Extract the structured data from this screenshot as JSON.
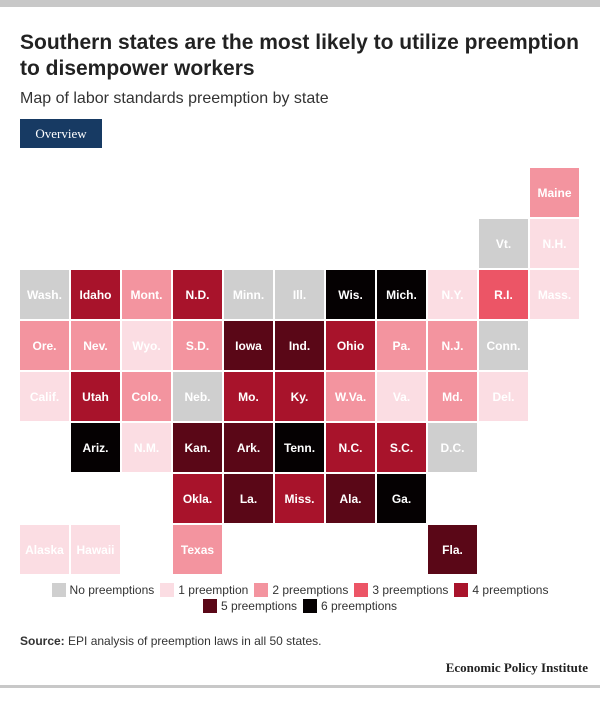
{
  "title": "Southern states are the most likely to utilize preemption to disempower workers",
  "subtitle": "Map of labor standards preemption by state",
  "tab_label": "Overview",
  "legend": [
    {
      "label": "No preemptions",
      "level": 0
    },
    {
      "label": "1 preemption",
      "level": 1
    },
    {
      "label": "2 preemptions",
      "level": 2
    },
    {
      "label": "3 preemptions",
      "level": 3
    },
    {
      "label": "4 preemptions",
      "level": 4
    },
    {
      "label": "5 preemptions",
      "level": 5
    },
    {
      "label": "6 preemptions",
      "level": 6
    }
  ],
  "colors": {
    "0": "#cfcfcf",
    "1": "#fbdde3",
    "2": "#f3949f",
    "3": "#ec5566",
    "4": "#a8132b",
    "5": "#5a0717",
    "6": "#050102"
  },
  "states": [
    {
      "label": "Maine",
      "row": 0,
      "col": 10,
      "preemptions": 2
    },
    {
      "label": "Vt.",
      "row": 1,
      "col": 9,
      "preemptions": 0
    },
    {
      "label": "N.H.",
      "row": 1,
      "col": 10,
      "preemptions": 1
    },
    {
      "label": "Wash.",
      "row": 2,
      "col": 0,
      "preemptions": 0
    },
    {
      "label": "Idaho",
      "row": 2,
      "col": 1,
      "preemptions": 4
    },
    {
      "label": "Mont.",
      "row": 2,
      "col": 2,
      "preemptions": 2
    },
    {
      "label": "N.D.",
      "row": 2,
      "col": 3,
      "preemptions": 4
    },
    {
      "label": "Minn.",
      "row": 2,
      "col": 4,
      "preemptions": 0
    },
    {
      "label": "Ill.",
      "row": 2,
      "col": 5,
      "preemptions": 0
    },
    {
      "label": "Wis.",
      "row": 2,
      "col": 6,
      "preemptions": 6
    },
    {
      "label": "Mich.",
      "row": 2,
      "col": 7,
      "preemptions": 6
    },
    {
      "label": "N.Y.",
      "row": 2,
      "col": 8,
      "preemptions": 1
    },
    {
      "label": "R.I.",
      "row": 2,
      "col": 9,
      "preemptions": 3
    },
    {
      "label": "Mass.",
      "row": 2,
      "col": 10,
      "preemptions": 1
    },
    {
      "label": "Ore.",
      "row": 3,
      "col": 0,
      "preemptions": 2
    },
    {
      "label": "Nev.",
      "row": 3,
      "col": 1,
      "preemptions": 2
    },
    {
      "label": "Wyo.",
      "row": 3,
      "col": 2,
      "preemptions": 1
    },
    {
      "label": "S.D.",
      "row": 3,
      "col": 3,
      "preemptions": 2
    },
    {
      "label": "Iowa",
      "row": 3,
      "col": 4,
      "preemptions": 5
    },
    {
      "label": "Ind.",
      "row": 3,
      "col": 5,
      "preemptions": 5
    },
    {
      "label": "Ohio",
      "row": 3,
      "col": 6,
      "preemptions": 4
    },
    {
      "label": "Pa.",
      "row": 3,
      "col": 7,
      "preemptions": 2
    },
    {
      "label": "N.J.",
      "row": 3,
      "col": 8,
      "preemptions": 2
    },
    {
      "label": "Conn.",
      "row": 3,
      "col": 9,
      "preemptions": 0
    },
    {
      "label": "Calif.",
      "row": 4,
      "col": 0,
      "preemptions": 1
    },
    {
      "label": "Utah",
      "row": 4,
      "col": 1,
      "preemptions": 4
    },
    {
      "label": "Colo.",
      "row": 4,
      "col": 2,
      "preemptions": 2
    },
    {
      "label": "Neb.",
      "row": 4,
      "col": 3,
      "preemptions": 0
    },
    {
      "label": "Mo.",
      "row": 4,
      "col": 4,
      "preemptions": 4
    },
    {
      "label": "Ky.",
      "row": 4,
      "col": 5,
      "preemptions": 4
    },
    {
      "label": "W.Va.",
      "row": 4,
      "col": 6,
      "preemptions": 2
    },
    {
      "label": "Va.",
      "row": 4,
      "col": 7,
      "preemptions": 1
    },
    {
      "label": "Md.",
      "row": 4,
      "col": 8,
      "preemptions": 2
    },
    {
      "label": "Del.",
      "row": 4,
      "col": 9,
      "preemptions": 1
    },
    {
      "label": "Ariz.",
      "row": 5,
      "col": 1,
      "preemptions": 6
    },
    {
      "label": "N.M.",
      "row": 5,
      "col": 2,
      "preemptions": 1
    },
    {
      "label": "Kan.",
      "row": 5,
      "col": 3,
      "preemptions": 5
    },
    {
      "label": "Ark.",
      "row": 5,
      "col": 4,
      "preemptions": 5
    },
    {
      "label": "Tenn.",
      "row": 5,
      "col": 5,
      "preemptions": 6
    },
    {
      "label": "N.C.",
      "row": 5,
      "col": 6,
      "preemptions": 4
    },
    {
      "label": "S.C.",
      "row": 5,
      "col": 7,
      "preemptions": 4
    },
    {
      "label": "D.C.",
      "row": 5,
      "col": 8,
      "preemptions": 0
    },
    {
      "label": "Okla.",
      "row": 6,
      "col": 3,
      "preemptions": 4
    },
    {
      "label": "La.",
      "row": 6,
      "col": 4,
      "preemptions": 5
    },
    {
      "label": "Miss.",
      "row": 6,
      "col": 5,
      "preemptions": 4
    },
    {
      "label": "Ala.",
      "row": 6,
      "col": 6,
      "preemptions": 5
    },
    {
      "label": "Ga.",
      "row": 6,
      "col": 7,
      "preemptions": 6
    },
    {
      "label": "Alaska",
      "row": 7,
      "col": 0,
      "preemptions": 1
    },
    {
      "label": "Hawaii",
      "row": 7,
      "col": 1,
      "preemptions": 1
    },
    {
      "label": "Texas",
      "row": 7,
      "col": 3,
      "preemptions": 2
    },
    {
      "label": "Fla.",
      "row": 7,
      "col": 8,
      "preemptions": 5
    }
  ],
  "source_label": "Source:",
  "source_text": " EPI analysis of preemption laws in all 50 states.",
  "brand": "Economic Policy Institute"
}
